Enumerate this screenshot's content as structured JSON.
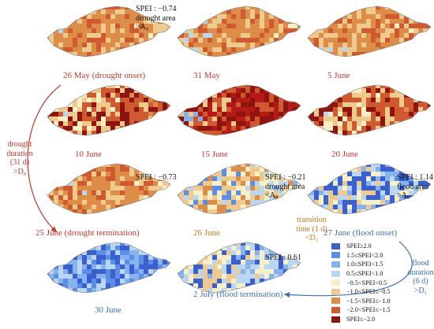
{
  "legend": [
    {
      "label": "SPEI≥2.0",
      "color": "#3a5fcf"
    },
    {
      "label": "1.5≤SPEI<2.0",
      "color": "#5b8ee6"
    },
    {
      "label": "1.0≤SPEI<1.5",
      "color": "#86b3ee"
    },
    {
      "label": "0.5≤SPEI<1.0",
      "color": "#b9d6f2"
    },
    {
      "label": "−0.5<SPEI<0.5",
      "color": "#f7f0c6"
    },
    {
      "label": "−1.0<SPEI≤−0.5",
      "color": "#eecb8d"
    },
    {
      "label": "−1.5<SPEI≤−1.0",
      "color": "#dd8d48"
    },
    {
      "label": "−2.0<SPEI≤−1.5",
      "color": "#d05a30"
    },
    {
      "label": "SPEI≤−2.0",
      "color": "#8e1410"
    }
  ],
  "maps": [
    {
      "caption": "26 May (drought onset)",
      "theme": "dry-mid",
      "captionColor": "red"
    },
    {
      "caption": "31 May",
      "theme": "dry-mid",
      "captionColor": "red"
    },
    {
      "caption": "5 June",
      "theme": "dry-mid",
      "captionColor": "red"
    },
    {
      "caption": "10 June",
      "theme": "dry-strong",
      "captionColor": "red"
    },
    {
      "caption": "15 June",
      "theme": "dry-extreme",
      "captionColor": "red"
    },
    {
      "caption": "20 June",
      "theme": "dry-strong",
      "captionColor": "red"
    },
    {
      "caption": "25 June (drought termination)",
      "theme": "dry-mid",
      "captionColor": "red"
    },
    {
      "caption": "26 June",
      "theme": "transition",
      "captionColor": "orange"
    },
    {
      "caption": "27 June (flood onset)",
      "theme": "wet-mid",
      "captionColor": "blue"
    },
    {
      "caption": "30 June",
      "theme": "wet-strong",
      "captionColor": "blue"
    },
    {
      "caption": "2 July (flood termination)",
      "theme": "wet-mid",
      "captionColor": "blue"
    }
  ],
  "notes": {
    "n1": [
      "SPEI : −0.74",
      "drought area",
      ">A₀"
    ],
    "n2": [
      "SPEI : −0.73"
    ],
    "n3": [
      "SPEI : −0.21",
      "drought area",
      "<A₀"
    ],
    "n4": [
      "SPEI : 1.14",
      "flood area",
      ">A₀"
    ],
    "n5": [
      "SPEI : 0.61"
    ]
  },
  "side": {
    "drought": [
      "drought",
      "duration",
      "(31 d)",
      ">D₀"
    ],
    "transition": [
      "transition",
      "time (1 d)",
      "<D₂"
    ],
    "flood": [
      "flood",
      "duration",
      "(6 d)",
      ">D₁"
    ]
  }
}
